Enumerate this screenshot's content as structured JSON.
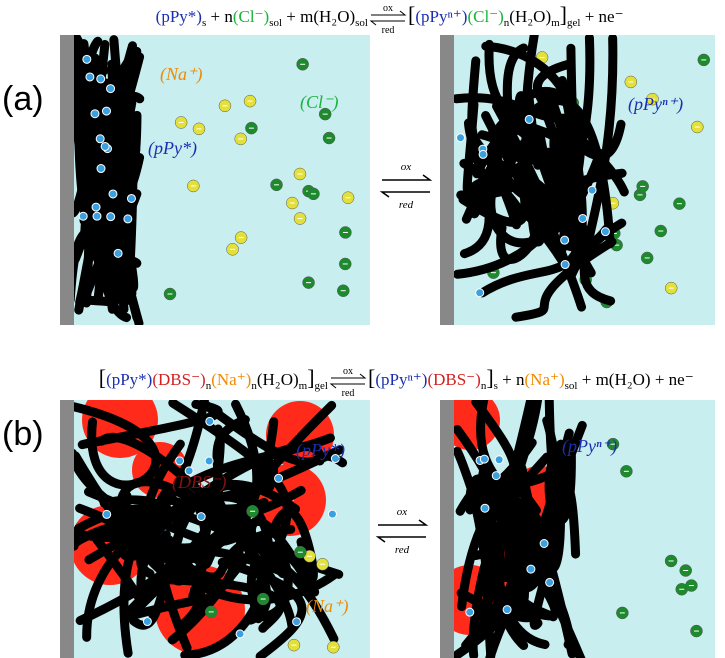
{
  "panel_labels": [
    "(a)",
    "(b)"
  ],
  "equation_a": {
    "left": [
      "(pPy*)",
      "s",
      " + n",
      "(Cl⁻)",
      "sol",
      " + m(H₂O)",
      "sol"
    ],
    "arrow": [
      "ox",
      "red"
    ],
    "right": [
      "[",
      "(pPyⁿ⁺)",
      "(Cl⁻)",
      "n",
      "(H₂O)",
      "m",
      "]",
      "gel",
      " + ne⁻"
    ]
  },
  "equation_b": {
    "left": [
      "[",
      "(pPy*)",
      "(DBS⁻)",
      "n",
      "(Na⁺)",
      "n",
      "(H₂O)",
      "m",
      "]",
      "gel"
    ],
    "arrow": [
      "ox",
      "red"
    ],
    "right": [
      "[",
      "(pPyⁿ⁺)",
      "(DBS⁻)",
      "n",
      "]",
      "s",
      " + n",
      "(Na⁺)",
      "sol",
      " + m(H₂O) + ne⁻"
    ]
  },
  "mid_arrows": {
    "a": [
      "ox",
      "red"
    ],
    "b": [
      "ox",
      "red"
    ]
  },
  "annotations_a": {
    "na": "(Na⁺)",
    "cl": "(Cl⁻)",
    "ppy": "(pPy*)",
    "ppyn": "(pPyⁿ⁺)"
  },
  "annotations_b": {
    "ppy": "(pPy*)",
    "dbs": "(DBS⁻)",
    "na": "(Na⁺)",
    "ppyn": "(pPyⁿ⁺)"
  }
}
